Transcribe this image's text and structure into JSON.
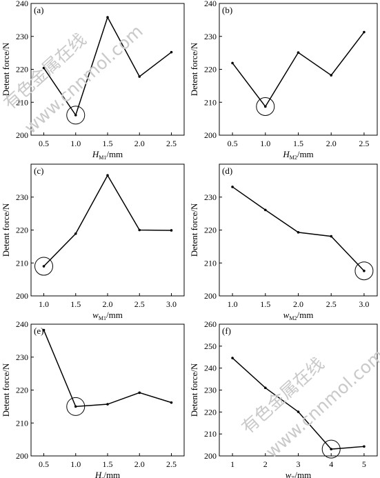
{
  "figure": {
    "watermark_cn": "有色金属在线",
    "watermark_url": "www.cnnmol.com"
  },
  "chart_data": [
    {
      "type": "line",
      "panel_label": "(a)",
      "ylabel": "Detent force/N",
      "xlabel_main": "H",
      "xlabel_sub": "M1",
      "xlabel_unit": "/mm",
      "xticks": [
        "0.5",
        "1.0",
        "1.5",
        "2.0",
        "2.5"
      ],
      "yticks": [
        "200",
        "210",
        "220",
        "230",
        "240"
      ],
      "xlim": [
        0.3,
        2.7
      ],
      "ylim": [
        200,
        240
      ],
      "x": [
        0.5,
        1.0,
        1.5,
        2.0,
        2.5
      ],
      "y": [
        220.4,
        206.1,
        235.8,
        217.8,
        225.2
      ],
      "highlight_index": 1
    },
    {
      "type": "line",
      "panel_label": "(b)",
      "ylabel": "Detent force/N",
      "xlabel_main": "H",
      "xlabel_sub": "M2",
      "xlabel_unit": "/mm",
      "xticks": [
        "0.5",
        "1.0",
        "1.5",
        "2.0",
        "2.5"
      ],
      "yticks": [
        "200",
        "210",
        "220",
        "230",
        "240"
      ],
      "xlim": [
        0.3,
        2.7
      ],
      "ylim": [
        200,
        240
      ],
      "x": [
        0.5,
        1.0,
        1.5,
        2.0,
        2.5
      ],
      "y": [
        221.9,
        208.7,
        225.1,
        218.2,
        231.3
      ],
      "highlight_index": 1
    },
    {
      "type": "line",
      "panel_label": "(c)",
      "ylabel": "Detent force/N",
      "xlabel_main": "w",
      "xlabel_sub": "M1",
      "xlabel_unit": "/mm",
      "xticks": [
        "1.0",
        "1.5",
        "2.0",
        "2.5",
        "3.0"
      ],
      "yticks": [
        "200",
        "210",
        "220",
        "230"
      ],
      "xlim": [
        0.8,
        3.2
      ],
      "ylim": [
        200,
        240
      ],
      "x": [
        1.0,
        1.5,
        2.0,
        2.5,
        3.0
      ],
      "y": [
        209.0,
        218.9,
        236.6,
        220.0,
        219.9
      ],
      "highlight_index": 0
    },
    {
      "type": "line",
      "panel_label": "(d)",
      "ylabel": "Detent force/N",
      "xlabel_main": "w",
      "xlabel_sub": "M2",
      "xlabel_unit": "/mm",
      "xticks": [
        "1.0",
        "1.5",
        "2.0",
        "2.5",
        "3.0"
      ],
      "yticks": [
        "200",
        "210",
        "220",
        "230"
      ],
      "xlim": [
        0.8,
        3.2
      ],
      "ylim": [
        200,
        240
      ],
      "x": [
        1.0,
        1.5,
        2.0,
        2.5,
        3.0
      ],
      "y": [
        233.1,
        226.1,
        219.3,
        218.1,
        207.6
      ],
      "highlight_index": 4
    },
    {
      "type": "line",
      "panel_label": "(e)",
      "ylabel": "Detent force/N",
      "xlabel_main": "H",
      "xlabel_sub": "s",
      "xlabel_unit": "/mm",
      "xticks": [
        "0.5",
        "1.0",
        "1.5",
        "2.0",
        "2.5"
      ],
      "yticks": [
        "200",
        "210",
        "220",
        "230",
        "240"
      ],
      "xlim": [
        0.3,
        2.7
      ],
      "ylim": [
        200,
        240
      ],
      "x": [
        0.5,
        1.0,
        1.5,
        2.0,
        2.5
      ],
      "y": [
        238.2,
        215.0,
        215.7,
        219.2,
        216.2
      ],
      "highlight_index": 1
    },
    {
      "type": "line",
      "panel_label": "(f)",
      "ylabel": "Detent force/N",
      "xlabel_main": "w",
      "xlabel_sub": "T",
      "xlabel_unit": "/mm",
      "xticks": [
        "1",
        "2",
        "3",
        "4",
        "5"
      ],
      "yticks": [
        "200",
        "210",
        "220",
        "230",
        "240",
        "250",
        "260"
      ],
      "xlim": [
        0.6,
        5.4
      ],
      "ylim": [
        200,
        260
      ],
      "x": [
        1,
        2,
        3,
        4,
        5
      ],
      "y": [
        244.6,
        231.0,
        220.1,
        203.1,
        204.3
      ],
      "highlight_index": 3
    }
  ]
}
